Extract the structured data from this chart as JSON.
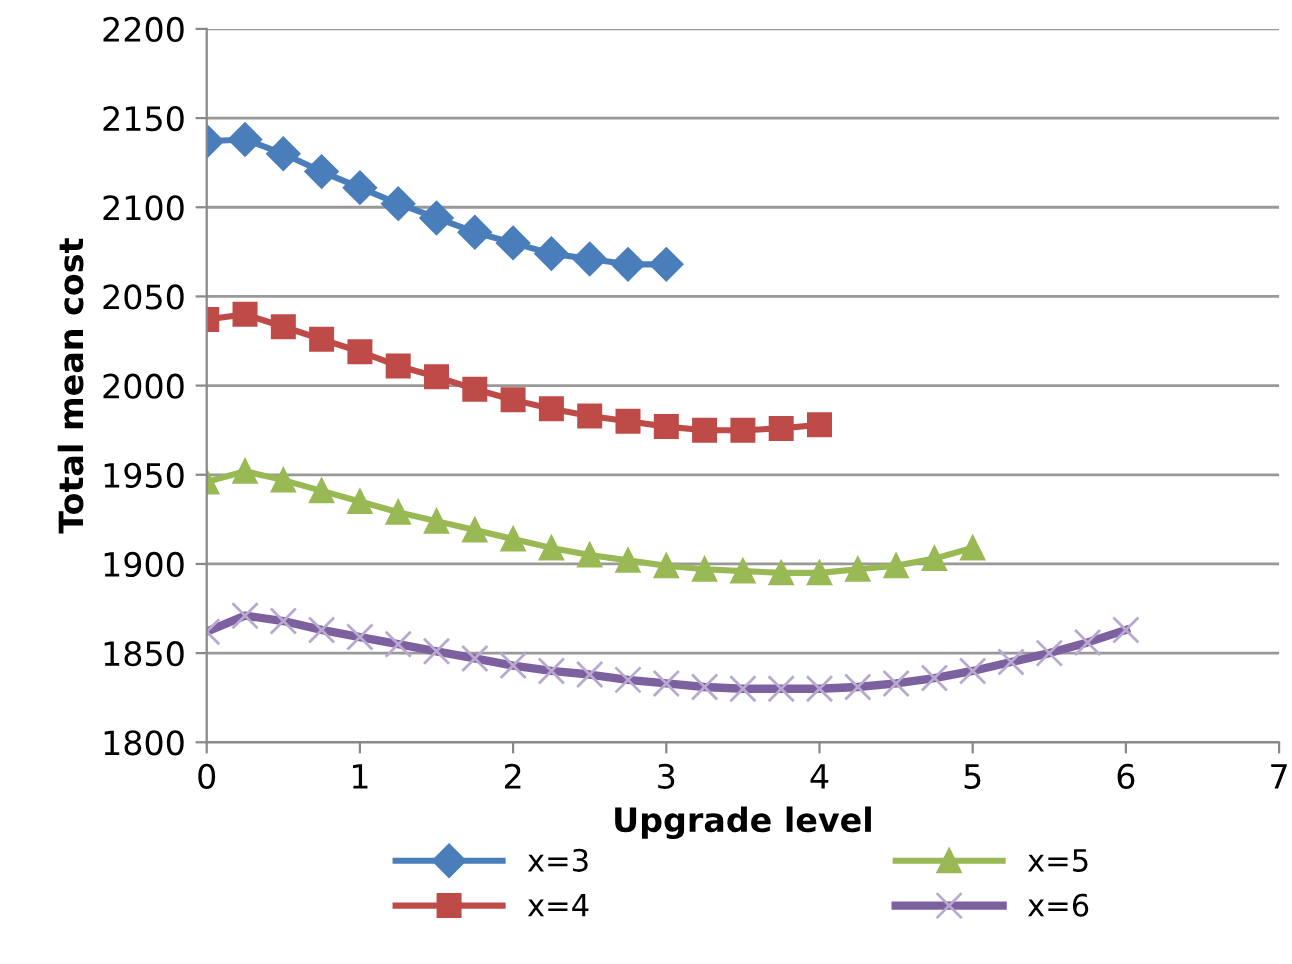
{
  "chart_data": {
    "type": "line",
    "xlabel": "Upgrade level",
    "ylabel": "Total mean cost",
    "xlim": [
      0,
      7
    ],
    "xticks": [
      0,
      1,
      2,
      3,
      4,
      5,
      6,
      7
    ],
    "ylim": [
      1800,
      2200
    ],
    "yticks": [
      1800,
      1850,
      1900,
      1950,
      2000,
      2050,
      2100,
      2150,
      2200
    ],
    "grid": "y",
    "legend": "bottom",
    "series": [
      {
        "name": "x=3",
        "color": "#4a7ebb",
        "marker": "diamond",
        "x": [
          0,
          0.25,
          0.5,
          0.75,
          1,
          1.25,
          1.5,
          1.75,
          2,
          2.25,
          2.5,
          2.75,
          3
        ],
        "values": [
          2137,
          2138,
          2130,
          2120,
          2111,
          2102,
          2094,
          2086,
          2080,
          2074,
          2071,
          2068,
          2068
        ]
      },
      {
        "name": "x=4",
        "color": "#be4b48",
        "marker": "square",
        "x": [
          0,
          0.25,
          0.5,
          0.75,
          1,
          1.25,
          1.5,
          1.75,
          2,
          2.25,
          2.5,
          2.75,
          3,
          3.25,
          3.5,
          3.75,
          4
        ],
        "values": [
          2037,
          2040,
          2033,
          2026,
          2019,
          2011,
          2005,
          1998,
          1992,
          1987,
          1983,
          1980,
          1977,
          1975,
          1975,
          1976,
          1978
        ]
      },
      {
        "name": "x=5",
        "color": "#98b954",
        "marker": "triangle",
        "x": [
          0,
          0.25,
          0.5,
          0.75,
          1,
          1.25,
          1.5,
          1.75,
          2,
          2.25,
          2.5,
          2.75,
          3,
          3.25,
          3.5,
          3.75,
          4,
          4.25,
          4.5,
          4.75,
          5
        ],
        "values": [
          1946,
          1952,
          1947,
          1941,
          1935,
          1929,
          1924,
          1919,
          1914,
          1909,
          1905,
          1902,
          1899,
          1897,
          1896,
          1895,
          1895,
          1897,
          1899,
          1903,
          1909
        ]
      },
      {
        "name": "x=6",
        "color": "#7d60a0",
        "marker": "cross",
        "x": [
          0,
          0.25,
          0.5,
          0.75,
          1,
          1.25,
          1.5,
          1.75,
          2,
          2.25,
          2.5,
          2.75,
          3,
          3.25,
          3.5,
          3.75,
          4,
          4.25,
          4.5,
          4.75,
          5,
          5.25,
          5.5,
          5.75,
          6
        ],
        "values": [
          1862,
          1871,
          1868,
          1863,
          1859,
          1855,
          1851,
          1847,
          1843,
          1840,
          1838,
          1835,
          1833,
          1831,
          1830,
          1830,
          1830,
          1831,
          1833,
          1836,
          1840,
          1845,
          1850,
          1856,
          1863
        ]
      }
    ]
  }
}
